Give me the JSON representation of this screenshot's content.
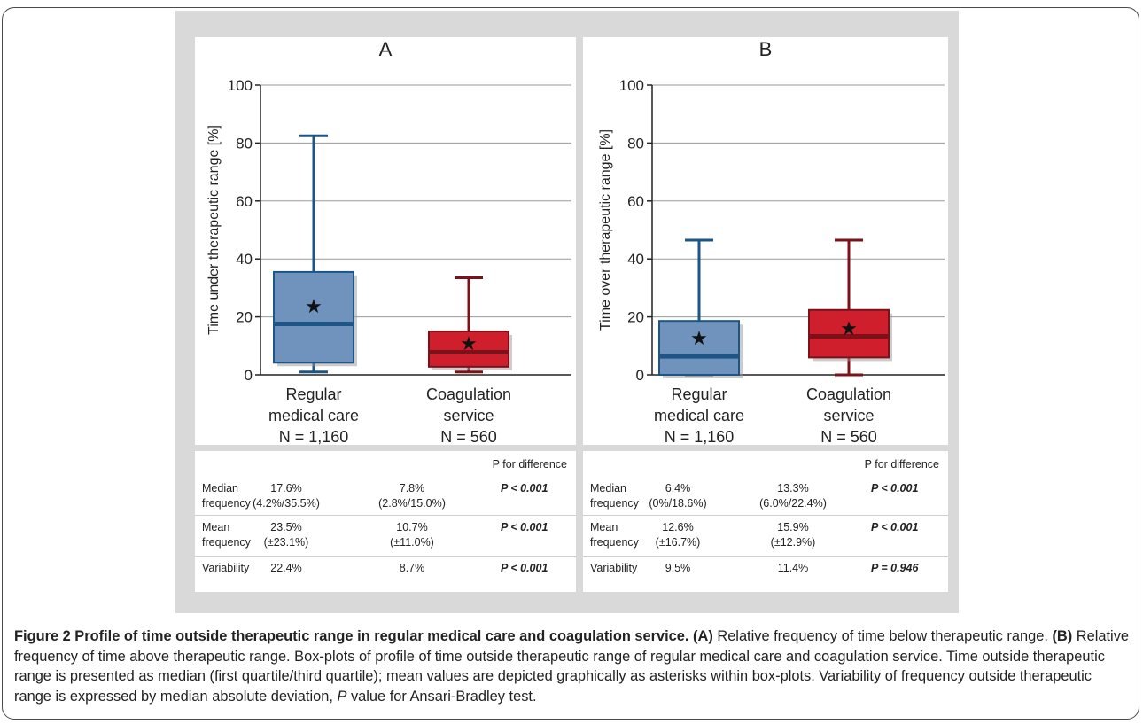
{
  "panels": [
    {
      "id": "A",
      "title": "A",
      "ylabel": "Time under therapeutic range [%]",
      "categories": [
        {
          "line1": "Regular",
          "line2": "medical care",
          "n": "N = 1,160"
        },
        {
          "line1": "Coagulation",
          "line2": "service",
          "n": "N = 560"
        }
      ],
      "stats": {
        "p_header": "P for difference",
        "rows": [
          {
            "label": [
              "Median",
              "frequency"
            ],
            "v1": [
              "17.6%",
              "(4.2%/35.5%)"
            ],
            "v2": [
              "7.8%",
              "(2.8%/15.0%)"
            ],
            "p": "P < 0.001"
          },
          {
            "label": [
              "Mean",
              "frequency"
            ],
            "v1": [
              "23.5%",
              "(±23.1%)"
            ],
            "v2": [
              "10.7%",
              "(±11.0%)"
            ],
            "p": "P < 0.001"
          },
          {
            "label": [
              "Variability"
            ],
            "v1": [
              "22.4%"
            ],
            "v2": [
              "8.7%"
            ],
            "p": "P < 0.001"
          }
        ]
      }
    },
    {
      "id": "B",
      "title": "B",
      "ylabel": "Time over therapeutic range [%]",
      "categories": [
        {
          "line1": "Regular",
          "line2": "medical care",
          "n": "N = 1,160"
        },
        {
          "line1": "Coagulation",
          "line2": "service",
          "n": "N = 560"
        }
      ],
      "stats": {
        "p_header": "P for difference",
        "rows": [
          {
            "label": [
              "Median",
              "frequency"
            ],
            "v1": [
              "6.4%",
              "(0%/18.6%)"
            ],
            "v2": [
              "13.3%",
              "(6.0%/22.4%)"
            ],
            "p": "P < 0.001"
          },
          {
            "label": [
              "Mean",
              "frequency"
            ],
            "v1": [
              "12.6%",
              "(±16.7%)"
            ],
            "v2": [
              "15.9%",
              "(±12.9%)"
            ],
            "p": "P < 0.001"
          },
          {
            "label": [
              "Variability"
            ],
            "v1": [
              "9.5%"
            ],
            "v2": [
              "11.4%"
            ],
            "p": "P = 0.946"
          }
        ]
      }
    }
  ],
  "chart_data": [
    {
      "type": "box",
      "title": "A",
      "ylabel": "Time under therapeutic range [%]",
      "ylim": [
        0,
        100
      ],
      "yticks": [
        0,
        20,
        40,
        60,
        80,
        100
      ],
      "grid": true,
      "categories": [
        "Regular medical care",
        "Coagulation service"
      ],
      "boxes": [
        {
          "name": "Regular medical care",
          "min": 1,
          "q1": 4.2,
          "median": 17.6,
          "q3": 35.5,
          "max": 82.5,
          "mean": 23.5,
          "color": "#6f93bd",
          "stroke": "#1d5585"
        },
        {
          "name": "Coagulation service",
          "min": 1,
          "q1": 2.8,
          "median": 7.8,
          "q3": 15.0,
          "max": 33.5,
          "mean": 10.7,
          "color": "#cf1f2c",
          "stroke": "#7d1119"
        }
      ]
    },
    {
      "type": "box",
      "title": "B",
      "ylabel": "Time over therapeutic range [%]",
      "ylim": [
        0,
        100
      ],
      "yticks": [
        0,
        20,
        40,
        60,
        80,
        100
      ],
      "grid": true,
      "categories": [
        "Regular medical care",
        "Coagulation service"
      ],
      "boxes": [
        {
          "name": "Regular medical care",
          "min": 0,
          "q1": 0,
          "median": 6.4,
          "q3": 18.6,
          "max": 46.5,
          "mean": 12.6,
          "color": "#6f93bd",
          "stroke": "#1d5585"
        },
        {
          "name": "Coagulation service",
          "min": 0,
          "q1": 6.0,
          "median": 13.3,
          "q3": 22.4,
          "max": 46.5,
          "mean": 15.9,
          "color": "#cf1f2c",
          "stroke": "#7d1119"
        }
      ]
    }
  ],
  "caption": {
    "figure_label": "Figure 2 Profile of time outside therapeutic range in regular medical care and coagulation service.",
    "a_label": "(A)",
    "a_text": " Relative frequency of time below therapeutic range. ",
    "b_label": "(B)",
    "b_text_1": " Relative frequency of time above therapeutic range. Box-plots of profile of time outside therapeutic range of regular medical care and coagulation service. Time outside therapeutic range is presented as median (first quartile/third quartile); mean values are depicted graphically as asterisks within box-plots. Variability of frequency outside therapeutic range is expressed by median absolute deviation, ",
    "p_italic": "P",
    "b_text_2": " value for Ansari-Bradley test."
  }
}
